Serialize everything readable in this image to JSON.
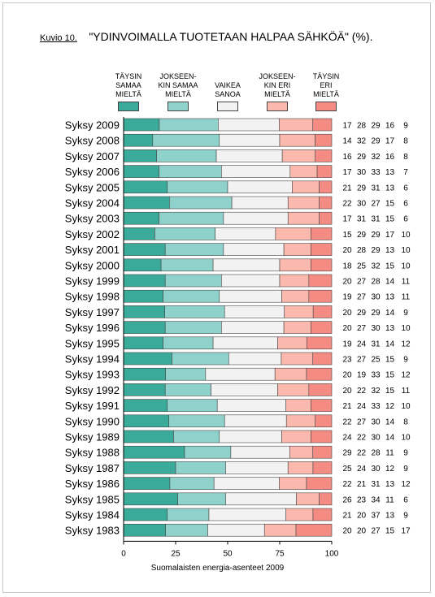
{
  "figure": {
    "label": "Kuvio 10.",
    "title": "\"YDINVOIMALLA TUOTETAAN HALPAA SÄHKÖÄ\" (%).",
    "footer": "Suomalaisten energia-asenteet 2009"
  },
  "colors": {
    "category": [
      "#3aab9a",
      "#8fd2cc",
      "#f2f2f2",
      "#fbb9ad",
      "#f58c84"
    ],
    "bar_stroke": "#444444",
    "axis": "#000000"
  },
  "chart_data": {
    "type": "bar",
    "orientation": "horizontal",
    "stacked": true,
    "xlim": [
      0,
      100
    ],
    "xticks": [
      0,
      25,
      50,
      75,
      100
    ],
    "categories": [
      "Syksy 2009",
      "Syksy 2008",
      "Syksy 2007",
      "Syksy 2006",
      "Syksy 2005",
      "Syksy 2004",
      "Syksy 2003",
      "Syksy 2002",
      "Syksy 2001",
      "Syksy 2000",
      "Syksy 1999",
      "Syksy 1998",
      "Syksy 1997",
      "Syksy 1996",
      "Syksy 1995",
      "Syksy 1994",
      "Syksy 1993",
      "Syksy 1992",
      "Syksy 1991",
      "Syksy 1990",
      "Syksy 1989",
      "Syksy 1988",
      "Syksy 1987",
      "Syksy 1986",
      "Syksy 1985",
      "Syksy 1984",
      "Syksy 1983"
    ],
    "series": [
      {
        "name": "TÄYSIN SAMAA MIELTÄ",
        "values": [
          17,
          14,
          16,
          17,
          21,
          22,
          17,
          15,
          20,
          18,
          20,
          19,
          20,
          20,
          19,
          23,
          20,
          20,
          21,
          22,
          24,
          29,
          25,
          22,
          26,
          21,
          20
        ]
      },
      {
        "name": "JOKSEEN-KIN SAMAA MIELTÄ",
        "values": [
          28,
          32,
          29,
          30,
          29,
          30,
          31,
          29,
          28,
          25,
          27,
          27,
          29,
          27,
          24,
          27,
          19,
          22,
          24,
          27,
          22,
          22,
          24,
          21,
          23,
          20,
          20
        ]
      },
      {
        "name": "VAIKEA SANOA",
        "values": [
          29,
          29,
          32,
          33,
          31,
          27,
          31,
          29,
          29,
          32,
          28,
          30,
          29,
          30,
          31,
          25,
          33,
          32,
          33,
          30,
          30,
          28,
          30,
          31,
          34,
          37,
          27
        ]
      },
      {
        "name": "JOKSEEN-KIN ERI MIELTÄ",
        "values": [
          16,
          17,
          16,
          13,
          13,
          15,
          15,
          17,
          13,
          15,
          14,
          13,
          14,
          13,
          14,
          15,
          15,
          15,
          12,
          14,
          14,
          11,
          12,
          13,
          11,
          13,
          15
        ]
      },
      {
        "name": "TÄYSIN ERI MIELTÄ",
        "values": [
          9,
          8,
          8,
          7,
          6,
          6,
          6,
          10,
          10,
          10,
          11,
          11,
          9,
          10,
          12,
          9,
          12,
          11,
          10,
          8,
          10,
          9,
          9,
          12,
          6,
          9,
          17
        ]
      }
    ]
  }
}
